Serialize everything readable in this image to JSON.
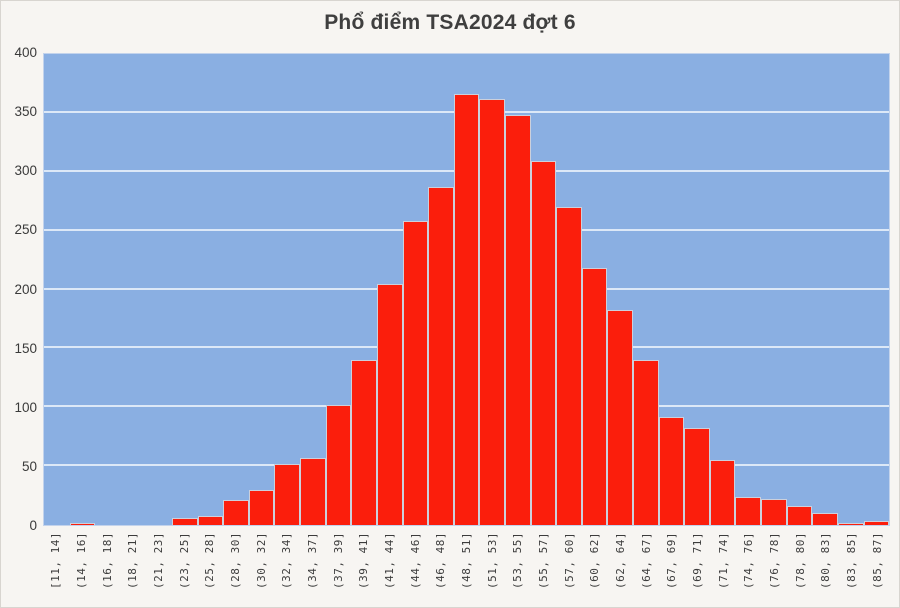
{
  "title": "Phổ điểm TSA2024 đợt 6",
  "colors": {
    "bar": "#fb1e0c",
    "bar_border": "#ccd0dc",
    "plot_background": "#8aafe2",
    "gridline": "#dce8f7",
    "axis_text": "#3a3a3a",
    "title_text": "#3f3f3f",
    "outer_background": "#f7f5f2"
  },
  "chart_data": {
    "type": "bar",
    "title": "Phổ điểm TSA2024 đợt 6",
    "xlabel": "",
    "ylabel": "",
    "ylim": [
      0,
      400
    ],
    "yticks": [
      0,
      50,
      100,
      150,
      200,
      250,
      300,
      350,
      400
    ],
    "grid": true,
    "legend": false,
    "categories": [
      "[11, 14]",
      "(14, 16]",
      "(16, 18]",
      "(18, 21]",
      "(21, 23]",
      "(23, 25]",
      "(25, 28]",
      "(28, 30]",
      "(30, 32]",
      "(32, 34]",
      "(34, 37]",
      "(37, 39]",
      "(39, 41]",
      "(41, 44]",
      "(44, 46]",
      "(46, 48]",
      "(48, 51]",
      "(51, 53]",
      "(53, 55]",
      "(55, 57]",
      "(57, 60]",
      "(60, 62]",
      "(62, 64]",
      "(64, 67]",
      "(67, 69]",
      "(69, 71]",
      "(71, 74]",
      "(74, 76]",
      "(76, 78]",
      "(78, 80]",
      "(80, 83]",
      "(83, 85]",
      "(85, 87]"
    ],
    "values": [
      0,
      2,
      0,
      0,
      0,
      6,
      8,
      21,
      30,
      52,
      57,
      102,
      140,
      205,
      258,
      287,
      366,
      362,
      348,
      309,
      270,
      218,
      183,
      140,
      92,
      82,
      55,
      24,
      22,
      16,
      10,
      2,
      3
    ]
  }
}
